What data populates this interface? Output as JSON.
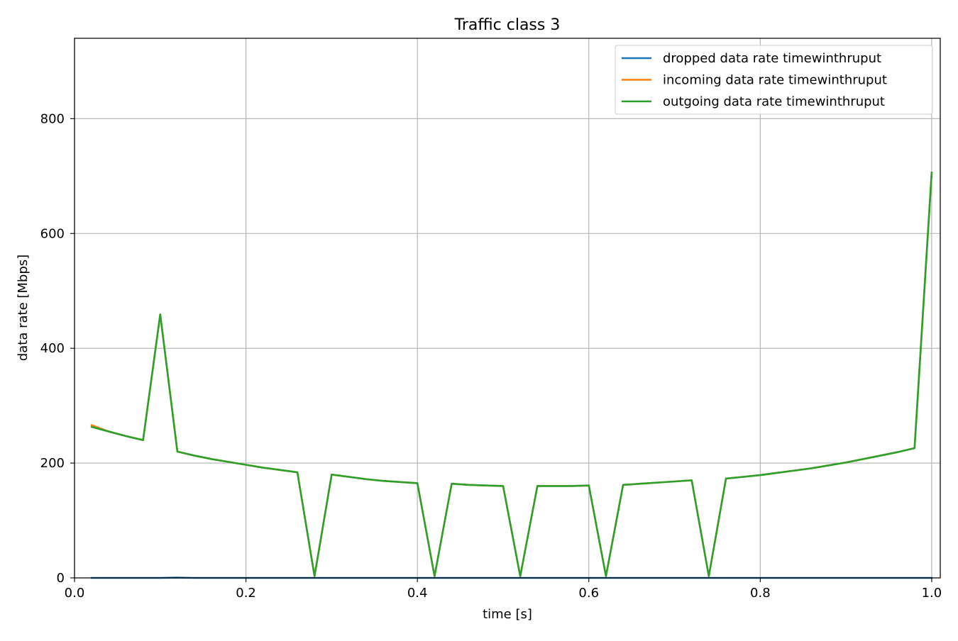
{
  "chart_data": {
    "type": "line",
    "title": "Traffic class 3",
    "xlabel": "time [s]",
    "ylabel": "data rate [Mbps]",
    "xlim": [
      0.0,
      1.01
    ],
    "ylim": [
      0,
      940
    ],
    "xticks": [
      0.0,
      0.2,
      0.4,
      0.6,
      0.8,
      1.0
    ],
    "xtick_labels": [
      "0.0",
      "0.2",
      "0.4",
      "0.6",
      "0.8",
      "1.0"
    ],
    "yticks": [
      0,
      200,
      400,
      600,
      800
    ],
    "ytick_labels": [
      "0",
      "200",
      "400",
      "600",
      "800"
    ],
    "grid": true,
    "legend_position": "top-right",
    "series": [
      {
        "name": "dropped data rate timewinthruput",
        "color": "#1f77b4",
        "x": [
          0.02,
          0.04,
          0.06,
          0.08,
          0.1,
          0.12,
          0.14,
          0.16,
          0.18,
          0.2,
          0.22,
          0.24,
          0.26,
          0.28,
          0.3,
          0.32,
          0.34,
          0.36,
          0.38,
          0.4,
          0.42,
          0.44,
          0.46,
          0.48,
          0.5,
          0.52,
          0.54,
          0.56,
          0.58,
          0.6,
          0.62,
          0.64,
          0.66,
          0.68,
          0.7,
          0.72,
          0.74,
          0.76,
          0.78,
          0.8,
          0.82,
          0.84,
          0.86,
          0.88,
          0.9,
          0.92,
          0.94,
          0.96,
          0.98,
          1.0
        ],
        "y": [
          0,
          0,
          0,
          0,
          0,
          0.5,
          0,
          0,
          0,
          0,
          0,
          0,
          0,
          0,
          0,
          0,
          0,
          0,
          0,
          0,
          0,
          0,
          0,
          0,
          0,
          0,
          0,
          0,
          0,
          0,
          0,
          0,
          0,
          0,
          0,
          0,
          0,
          0,
          0,
          0,
          0,
          0,
          0,
          0,
          0,
          0,
          0,
          0,
          0,
          0
        ]
      },
      {
        "name": "incoming data rate timewinthruput",
        "color": "#ff7f0e",
        "x": [
          0.02,
          0.04,
          0.06,
          0.08,
          0.1,
          0.12,
          0.14,
          0.16,
          0.18,
          0.2,
          0.22,
          0.24,
          0.26,
          0.28,
          0.3,
          0.32,
          0.34,
          0.36,
          0.38,
          0.4,
          0.42,
          0.44,
          0.46,
          0.48,
          0.5,
          0.52,
          0.54,
          0.56,
          0.58,
          0.6,
          0.62,
          0.64,
          0.66,
          0.68,
          0.7,
          0.72,
          0.74,
          0.76,
          0.78,
          0.8,
          0.82,
          0.84,
          0.86,
          0.88,
          0.9,
          0.92,
          0.94,
          0.96,
          0.98,
          1.0
        ],
        "y": [
          266,
          255,
          247,
          240,
          459,
          220,
          213,
          207,
          202,
          197,
          192,
          188,
          184,
          3,
          180,
          176,
          172,
          169,
          167,
          165,
          3,
          164,
          162,
          161,
          160,
          3,
          160,
          160,
          160,
          161,
          3,
          162,
          164,
          166,
          168,
          170,
          3,
          173,
          176,
          179,
          183,
          187,
          191,
          196,
          201,
          207,
          213,
          219,
          226,
          706
        ]
      },
      {
        "name": "outgoing data rate timewinthruput",
        "color": "#2ca02c",
        "x": [
          0.02,
          0.04,
          0.06,
          0.08,
          0.1,
          0.12,
          0.14,
          0.16,
          0.18,
          0.2,
          0.22,
          0.24,
          0.26,
          0.28,
          0.3,
          0.32,
          0.34,
          0.36,
          0.38,
          0.4,
          0.42,
          0.44,
          0.46,
          0.48,
          0.5,
          0.52,
          0.54,
          0.56,
          0.58,
          0.6,
          0.62,
          0.64,
          0.66,
          0.68,
          0.7,
          0.72,
          0.74,
          0.76,
          0.78,
          0.8,
          0.82,
          0.84,
          0.86,
          0.88,
          0.9,
          0.92,
          0.94,
          0.96,
          0.98,
          1.0
        ],
        "y": [
          263,
          255,
          247,
          240,
          459,
          220,
          213,
          207,
          202,
          197,
          192,
          188,
          184,
          3,
          180,
          176,
          172,
          169,
          167,
          165,
          3,
          164,
          162,
          161,
          160,
          3,
          160,
          160,
          160,
          161,
          3,
          162,
          164,
          166,
          168,
          170,
          3,
          173,
          176,
          179,
          183,
          187,
          191,
          196,
          201,
          207,
          213,
          219,
          226,
          706
        ]
      }
    ]
  }
}
